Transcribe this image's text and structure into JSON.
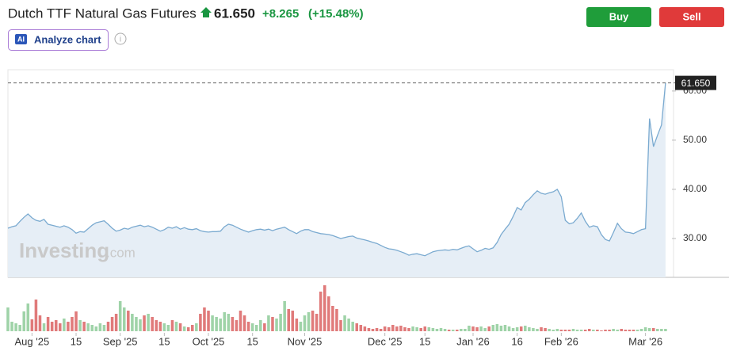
{
  "header": {
    "title": "Dutch TTF Natural Gas Futures",
    "price": "61.650",
    "change": "+8.265",
    "change_pct": "(+15.48%)",
    "buy": "Buy",
    "sell": "Sell",
    "analyze": "Analyze chart",
    "ai_badge": "AI",
    "info": "i"
  },
  "watermark": {
    "brand": "Investing",
    "suffix": ".com"
  },
  "chart_data": {
    "type": "line",
    "series": [
      {
        "name": "Price",
        "color": "#7aaad0",
        "values": [
          32.1,
          32.4,
          32.6,
          33.5,
          34.3,
          35.0,
          34.2,
          33.7,
          33.5,
          33.9,
          32.9,
          32.7,
          32.5,
          32.3,
          32.6,
          32.3,
          31.8,
          31.1,
          31.4,
          31.3,
          32.0,
          32.7,
          33.2,
          33.4,
          33.6,
          32.9,
          32.1,
          31.5,
          31.7,
          32.1,
          31.9,
          32.3,
          32.5,
          32.7,
          32.4,
          32.6,
          32.3,
          31.9,
          31.5,
          31.8,
          32.3,
          32.1,
          32.4,
          31.9,
          32.2,
          31.9,
          31.8,
          32.0,
          31.6,
          31.4,
          31.3,
          31.4,
          31.4,
          31.5,
          32.4,
          32.9,
          32.7,
          32.3,
          31.9,
          31.6,
          31.3,
          31.6,
          31.8,
          31.9,
          31.7,
          31.9,
          31.6,
          31.9,
          32.1,
          32.3,
          31.8,
          31.4,
          31.0,
          31.5,
          31.8,
          31.8,
          31.4,
          31.2,
          31.0,
          30.9,
          30.8,
          30.6,
          30.3,
          30.0,
          30.2,
          30.4,
          30.5,
          30.1,
          29.9,
          29.7,
          29.5,
          29.2,
          29.0,
          28.6,
          28.2,
          27.9,
          27.8,
          27.6,
          27.3,
          27.0,
          26.6,
          26.8,
          26.9,
          26.7,
          26.5,
          26.9,
          27.3,
          27.5,
          27.6,
          27.7,
          27.6,
          27.8,
          27.7,
          28.0,
          28.3,
          28.5,
          27.9,
          27.3,
          27.6,
          28.0,
          27.8,
          28.1,
          29.2,
          30.8,
          31.9,
          32.9,
          34.5,
          36.3,
          35.8,
          37.3,
          38.0,
          38.9,
          39.7,
          39.2,
          39.0,
          39.3,
          39.5,
          40.0,
          38.5,
          33.7,
          33.0,
          33.2,
          34.1,
          35.2,
          33.5,
          32.3,
          32.6,
          32.4,
          30.8,
          29.8,
          29.5,
          31.2,
          33.1,
          32.0,
          31.3,
          31.2,
          31.0,
          31.4,
          31.8,
          32.0,
          54.4,
          48.7,
          51.0,
          53.1,
          61.65
        ]
      }
    ],
    "volume": [
      30,
      12,
      10,
      8,
      25,
      35,
      15,
      40,
      20,
      10,
      18,
      12,
      14,
      10,
      16,
      12,
      18,
      25,
      14,
      12,
      10,
      8,
      6,
      10,
      8,
      12,
      18,
      22,
      38,
      30,
      26,
      22,
      18,
      15,
      20,
      22,
      18,
      14,
      12,
      10,
      8,
      14,
      12,
      10,
      6,
      5,
      8,
      10,
      22,
      30,
      26,
      20,
      18,
      16,
      24,
      22,
      18,
      14,
      26,
      20,
      12,
      10,
      8,
      14,
      10,
      20,
      18,
      16,
      22,
      38,
      28,
      26,
      16,
      12,
      20,
      24,
      26,
      22,
      50,
      58,
      44,
      32,
      28,
      14,
      20,
      16,
      12,
      10,
      8,
      6,
      4,
      3,
      4,
      3,
      6,
      5,
      8,
      6,
      7,
      5,
      4,
      6,
      5,
      4,
      6,
      5,
      4,
      3,
      4,
      3,
      2,
      2,
      2,
      3,
      3,
      7,
      6,
      5,
      6,
      4,
      6,
      8,
      9,
      7,
      8,
      6,
      4,
      5,
      6,
      7,
      5,
      4,
      3,
      5,
      4,
      3,
      2,
      3,
      2,
      2,
      2,
      3,
      2,
      2,
      2,
      3,
      2,
      2,
      1,
      2,
      2,
      3,
      2,
      3,
      2,
      2,
      2,
      2,
      3,
      5,
      4,
      4,
      3,
      3,
      3
    ],
    "up_color": "#9fd3a8",
    "down_color": "#e07a7a",
    "xlim": [
      0,
      165.6
    ],
    "xticks": [
      {
        "value": 6,
        "label": "Aug '25"
      },
      {
        "value": 17,
        "label": "15"
      },
      {
        "value": 28,
        "label": "Sep '25"
      },
      {
        "value": 39,
        "label": "15"
      },
      {
        "value": 50,
        "label": "Oct '25"
      },
      {
        "value": 61,
        "label": "15"
      },
      {
        "value": 74,
        "label": "Nov '25"
      },
      {
        "value": 94,
        "label": "Dec '25"
      },
      {
        "value": 104,
        "label": "15"
      },
      {
        "value": 116,
        "label": "Jan '26"
      },
      {
        "value": 127,
        "label": "16"
      },
      {
        "value": 138,
        "label": "Feb '26"
      },
      {
        "value": 159,
        "label": "Mar '26"
      }
    ],
    "ylim": [
      22.1,
      63.2
    ],
    "yticks": [
      {
        "value": 30,
        "label": "30.00"
      },
      {
        "value": 40,
        "label": "40.00"
      },
      {
        "value": 50,
        "label": "50.00"
      },
      {
        "value": 60,
        "label": "60.00"
      }
    ]
  }
}
